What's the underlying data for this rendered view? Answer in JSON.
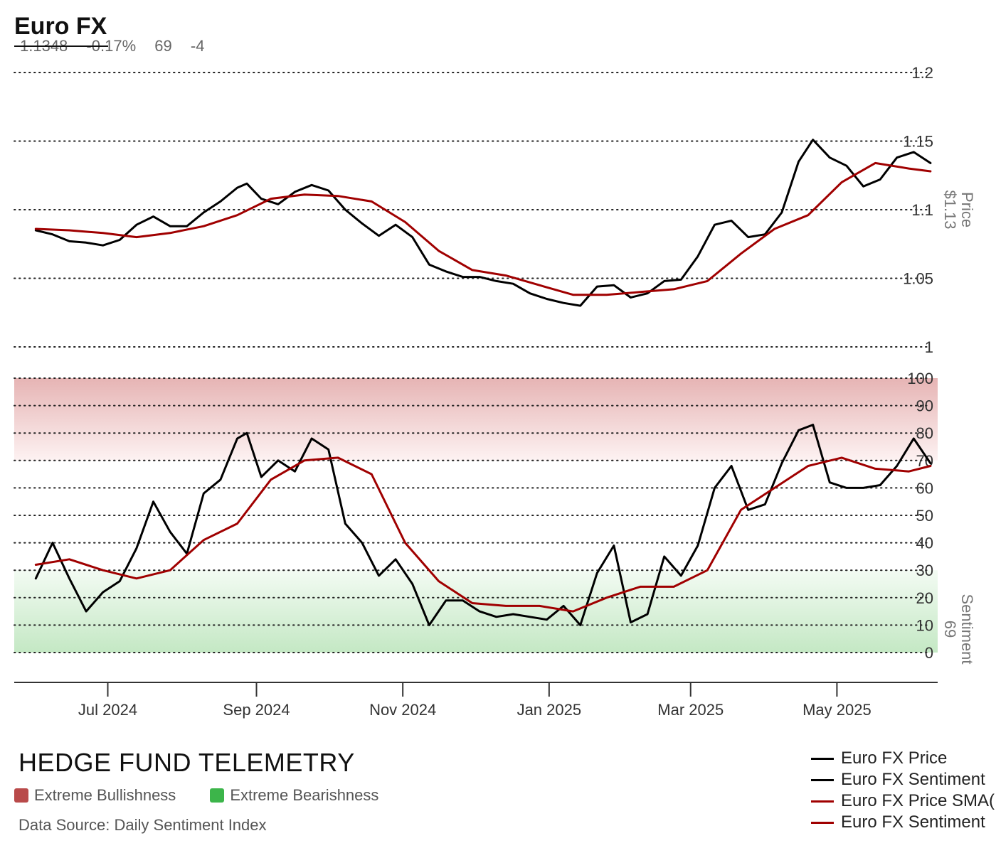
{
  "header": {
    "title": "Euro FX",
    "last_price": "1.1348",
    "change_pct": "-0.17%",
    "sentiment": "69",
    "sentiment_change": "-4"
  },
  "footer": {
    "brand": "HEDGE FUND TELEMETRY",
    "source": "Data Source: Daily Sentiment Index",
    "zones": [
      {
        "label": "Extreme Bullishness",
        "color": "#b94a4a"
      },
      {
        "label": "Extreme Bearishness",
        "color": "#3cb54a"
      }
    ]
  },
  "legend": [
    {
      "label": "Euro FX Price",
      "color": "#000000"
    },
    {
      "label": "Euro FX Sentiment",
      "color": "#000000"
    },
    {
      "label": "Euro FX Price SMA(",
      "color": "#a00000"
    },
    {
      "label": "Euro FX Sentiment",
      "color": "#a00000"
    }
  ],
  "chart_data": [
    {
      "type": "line",
      "panel": "price",
      "ylabel": "Price",
      "ylabel_value": "$1.13",
      "ylim": [
        1.0,
        1.2
      ],
      "yticks": [
        "1",
        "1.05",
        "1.1",
        "1.15",
        "1.2"
      ],
      "grid": true,
      "series": [
        {
          "name": "Euro FX Price",
          "color": "#000000",
          "points": [
            [
              "2024-06-01",
              1.085
            ],
            [
              "2024-06-08",
              1.082
            ],
            [
              "2024-06-15",
              1.077
            ],
            [
              "2024-06-22",
              1.076
            ],
            [
              "2024-06-29",
              1.074
            ],
            [
              "2024-07-06",
              1.078
            ],
            [
              "2024-07-13",
              1.089
            ],
            [
              "2024-07-20",
              1.095
            ],
            [
              "2024-07-27",
              1.088
            ],
            [
              "2024-08-03",
              1.088
            ],
            [
              "2024-08-10",
              1.098
            ],
            [
              "2024-08-17",
              1.106
            ],
            [
              "2024-08-24",
              1.116
            ],
            [
              "2024-08-28",
              1.119
            ],
            [
              "2024-09-03",
              1.108
            ],
            [
              "2024-09-10",
              1.104
            ],
            [
              "2024-09-17",
              1.113
            ],
            [
              "2024-09-24",
              1.118
            ],
            [
              "2024-10-01",
              1.114
            ],
            [
              "2024-10-08",
              1.1
            ],
            [
              "2024-10-15",
              1.09
            ],
            [
              "2024-10-22",
              1.081
            ],
            [
              "2024-10-29",
              1.089
            ],
            [
              "2024-11-05",
              1.08
            ],
            [
              "2024-11-12",
              1.06
            ],
            [
              "2024-11-19",
              1.055
            ],
            [
              "2024-11-26",
              1.051
            ],
            [
              "2024-12-03",
              1.051
            ],
            [
              "2024-12-10",
              1.048
            ],
            [
              "2024-12-17",
              1.046
            ],
            [
              "2024-12-24",
              1.039
            ],
            [
              "2024-12-31",
              1.035
            ],
            [
              "2025-01-07",
              1.032
            ],
            [
              "2025-01-14",
              1.03
            ],
            [
              "2025-01-21",
              1.044
            ],
            [
              "2025-01-28",
              1.045
            ],
            [
              "2025-02-04",
              1.036
            ],
            [
              "2025-02-11",
              1.039
            ],
            [
              "2025-02-18",
              1.048
            ],
            [
              "2025-02-25",
              1.049
            ],
            [
              "2025-03-04",
              1.066
            ],
            [
              "2025-03-11",
              1.089
            ],
            [
              "2025-03-18",
              1.092
            ],
            [
              "2025-03-25",
              1.08
            ],
            [
              "2025-04-01",
              1.082
            ],
            [
              "2025-04-08",
              1.098
            ],
            [
              "2025-04-15",
              1.135
            ],
            [
              "2025-04-21",
              1.151
            ],
            [
              "2025-04-28",
              1.138
            ],
            [
              "2025-05-05",
              1.132
            ],
            [
              "2025-05-12",
              1.117
            ],
            [
              "2025-05-19",
              1.122
            ],
            [
              "2025-05-26",
              1.138
            ],
            [
              "2025-06-02",
              1.142
            ],
            [
              "2025-06-09",
              1.134
            ]
          ]
        },
        {
          "name": "Euro FX Price SMA(",
          "color": "#a00000",
          "points": [
            [
              "2024-06-01",
              1.086
            ],
            [
              "2024-06-15",
              1.085
            ],
            [
              "2024-06-29",
              1.083
            ],
            [
              "2024-07-13",
              1.08
            ],
            [
              "2024-07-27",
              1.083
            ],
            [
              "2024-08-10",
              1.088
            ],
            [
              "2024-08-24",
              1.096
            ],
            [
              "2024-09-07",
              1.108
            ],
            [
              "2024-09-21",
              1.111
            ],
            [
              "2024-10-05",
              1.11
            ],
            [
              "2024-10-19",
              1.106
            ],
            [
              "2024-11-02",
              1.091
            ],
            [
              "2024-11-16",
              1.07
            ],
            [
              "2024-11-30",
              1.056
            ],
            [
              "2024-12-14",
              1.052
            ],
            [
              "2024-12-28",
              1.045
            ],
            [
              "2025-01-11",
              1.038
            ],
            [
              "2025-01-25",
              1.038
            ],
            [
              "2025-02-08",
              1.04
            ],
            [
              "2025-02-22",
              1.042
            ],
            [
              "2025-03-08",
              1.048
            ],
            [
              "2025-03-22",
              1.068
            ],
            [
              "2025-04-05",
              1.086
            ],
            [
              "2025-04-19",
              1.096
            ],
            [
              "2025-05-03",
              1.12
            ],
            [
              "2025-05-17",
              1.134
            ],
            [
              "2025-05-31",
              1.13
            ],
            [
              "2025-06-09",
              1.128
            ]
          ]
        }
      ]
    },
    {
      "type": "line",
      "panel": "sentiment",
      "ylabel": "Sentiment",
      "ylabel_value": "69",
      "ylim": [
        0,
        100
      ],
      "yticks": [
        "0",
        "10",
        "20",
        "30",
        "40",
        "50",
        "60",
        "70",
        "80",
        "90",
        "100"
      ],
      "grid": true,
      "series": [
        {
          "name": "Euro FX Sentiment",
          "color": "#000000",
          "points": [
            [
              "2024-06-01",
              27
            ],
            [
              "2024-06-08",
              40
            ],
            [
              "2024-06-15",
              27
            ],
            [
              "2024-06-22",
              15
            ],
            [
              "2024-06-29",
              22
            ],
            [
              "2024-07-06",
              26
            ],
            [
              "2024-07-13",
              38
            ],
            [
              "2024-07-20",
              55
            ],
            [
              "2024-07-27",
              44
            ],
            [
              "2024-08-03",
              36
            ],
            [
              "2024-08-10",
              58
            ],
            [
              "2024-08-17",
              63
            ],
            [
              "2024-08-24",
              78
            ],
            [
              "2024-08-28",
              80
            ],
            [
              "2024-09-03",
              64
            ],
            [
              "2024-09-10",
              70
            ],
            [
              "2024-09-17",
              66
            ],
            [
              "2024-09-24",
              78
            ],
            [
              "2024-10-01",
              74
            ],
            [
              "2024-10-08",
              47
            ],
            [
              "2024-10-15",
              40
            ],
            [
              "2024-10-22",
              28
            ],
            [
              "2024-10-29",
              34
            ],
            [
              "2024-11-05",
              25
            ],
            [
              "2024-11-12",
              10
            ],
            [
              "2024-11-19",
              19
            ],
            [
              "2024-11-26",
              19
            ],
            [
              "2024-12-03",
              15
            ],
            [
              "2024-12-10",
              13
            ],
            [
              "2024-12-17",
              14
            ],
            [
              "2024-12-24",
              13
            ],
            [
              "2024-12-31",
              12
            ],
            [
              "2025-01-07",
              17
            ],
            [
              "2025-01-14",
              10
            ],
            [
              "2025-01-21",
              29
            ],
            [
              "2025-01-28",
              39
            ],
            [
              "2025-02-04",
              11
            ],
            [
              "2025-02-11",
              14
            ],
            [
              "2025-02-18",
              35
            ],
            [
              "2025-02-25",
              28
            ],
            [
              "2025-03-04",
              39
            ],
            [
              "2025-03-11",
              60
            ],
            [
              "2025-03-18",
              68
            ],
            [
              "2025-03-25",
              52
            ],
            [
              "2025-04-01",
              54
            ],
            [
              "2025-04-08",
              69
            ],
            [
              "2025-04-15",
              81
            ],
            [
              "2025-04-21",
              83
            ],
            [
              "2025-04-28",
              62
            ],
            [
              "2025-05-05",
              60
            ],
            [
              "2025-05-12",
              60
            ],
            [
              "2025-05-19",
              61
            ],
            [
              "2025-05-26",
              68
            ],
            [
              "2025-06-02",
              78
            ],
            [
              "2025-06-09",
              69
            ]
          ]
        },
        {
          "name": "Euro FX Sentiment",
          "color": "#a00000",
          "points": [
            [
              "2024-06-01",
              32
            ],
            [
              "2024-06-15",
              34
            ],
            [
              "2024-06-29",
              30
            ],
            [
              "2024-07-13",
              27
            ],
            [
              "2024-07-27",
              30
            ],
            [
              "2024-08-10",
              41
            ],
            [
              "2024-08-24",
              47
            ],
            [
              "2024-09-07",
              63
            ],
            [
              "2024-09-21",
              70
            ],
            [
              "2024-10-05",
              71
            ],
            [
              "2024-10-19",
              65
            ],
            [
              "2024-11-02",
              40
            ],
            [
              "2024-11-16",
              26
            ],
            [
              "2024-11-30",
              18
            ],
            [
              "2024-12-14",
              17
            ],
            [
              "2024-12-28",
              17
            ],
            [
              "2025-01-11",
              15
            ],
            [
              "2025-01-25",
              20
            ],
            [
              "2025-02-08",
              24
            ],
            [
              "2025-02-22",
              24
            ],
            [
              "2025-03-08",
              30
            ],
            [
              "2025-03-22",
              52
            ],
            [
              "2025-04-05",
              60
            ],
            [
              "2025-04-19",
              68
            ],
            [
              "2025-05-03",
              71
            ],
            [
              "2025-05-17",
              67
            ],
            [
              "2025-05-31",
              66
            ],
            [
              "2025-06-09",
              68
            ]
          ]
        }
      ]
    }
  ],
  "x_axis": {
    "domain": [
      "2024-05-23",
      "2025-06-12"
    ],
    "ticks": [
      {
        "date": "2024-07-01",
        "label": "Jul 2024"
      },
      {
        "date": "2024-09-01",
        "label": "Sep 2024"
      },
      {
        "date": "2024-11-01",
        "label": "Nov 2024"
      },
      {
        "date": "2025-01-01",
        "label": "Jan 2025"
      },
      {
        "date": "2025-03-01",
        "label": "Mar 2025"
      },
      {
        "date": "2025-05-01",
        "label": "May 2025"
      }
    ]
  }
}
